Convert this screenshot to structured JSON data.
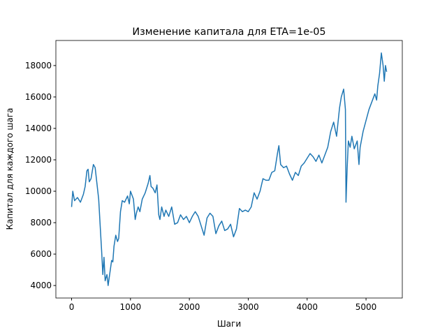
{
  "chart_data": {
    "type": "line",
    "title": "Изменение капитала для ETA=1e-05",
    "x_label": "Шаги",
    "y_label": "Капитал для каждого шага",
    "x": [
      0,
      20,
      50,
      100,
      150,
      200,
      230,
      260,
      280,
      300,
      330,
      370,
      400,
      430,
      460,
      490,
      510,
      530,
      550,
      570,
      600,
      620,
      650,
      680,
      700,
      720,
      750,
      780,
      800,
      830,
      860,
      900,
      950,
      980,
      1000,
      1050,
      1080,
      1100,
      1130,
      1160,
      1200,
      1250,
      1300,
      1330,
      1350,
      1380,
      1420,
      1450,
      1480,
      1500,
      1530,
      1570,
      1600,
      1650,
      1700,
      1750,
      1800,
      1850,
      1900,
      1950,
      2000,
      2050,
      2100,
      2150,
      2200,
      2250,
      2300,
      2350,
      2400,
      2450,
      2500,
      2550,
      2600,
      2650,
      2700,
      2750,
      2800,
      2850,
      2900,
      2950,
      3000,
      3050,
      3100,
      3150,
      3200,
      3250,
      3300,
      3350,
      3400,
      3450,
      3500,
      3520,
      3550,
      3600,
      3650,
      3700,
      3750,
      3800,
      3850,
      3900,
      3950,
      4000,
      4050,
      4100,
      4150,
      4200,
      4250,
      4300,
      4350,
      4400,
      4450,
      4500,
      4550,
      4580,
      4620,
      4650,
      4660,
      4680,
      4700,
      4730,
      4760,
      4800,
      4850,
      4880,
      4900,
      4950,
      5000,
      5050,
      5100,
      5150,
      5180,
      5200,
      5230,
      5260,
      5290,
      5310,
      5330,
      5350
    ],
    "series": [
      {
        "color": "#1f77b4",
        "values": [
          9000,
          10000,
          9400,
          9600,
          9300,
          9800,
          10300,
          11300,
          11400,
          10600,
          10800,
          11700,
          11500,
          10500,
          9500,
          7500,
          6200,
          4700,
          5800,
          4300,
          4700,
          4000,
          4800,
          5600,
          5500,
          6500,
          7200,
          6800,
          7000,
          8700,
          9400,
          9300,
          9700,
          9200,
          10000,
          9500,
          8200,
          8600,
          9000,
          8700,
          9500,
          9900,
          10500,
          11000,
          10300,
          10200,
          9900,
          10400,
          8500,
          8200,
          9000,
          8400,
          8800,
          8400,
          9000,
          7900,
          8000,
          8500,
          8200,
          8400,
          8000,
          8400,
          8700,
          8400,
          7800,
          7200,
          8300,
          8600,
          8400,
          7300,
          7800,
          8100,
          7500,
          7600,
          7900,
          7100,
          7600,
          8900,
          8700,
          8800,
          8700,
          9000,
          9900,
          9500,
          10000,
          10800,
          10700,
          10700,
          11200,
          11300,
          12500,
          12900,
          11700,
          11500,
          11600,
          11100,
          10700,
          11200,
          11000,
          11600,
          11800,
          12100,
          12400,
          12200,
          11900,
          12300,
          11800,
          12300,
          12800,
          13800,
          14400,
          13500,
          15300,
          16000,
          16500,
          15200,
          9300,
          11500,
          13200,
          12800,
          13500,
          12700,
          13200,
          11700,
          12800,
          13800,
          14500,
          15200,
          15700,
          16200,
          15800,
          16700,
          17500,
          18800,
          18000,
          17000,
          18000,
          17600
        ]
      }
    ],
    "xlim": [
      -267,
      5616
    ],
    "ylim": [
      3205,
      19595
    ],
    "xticks": [
      0,
      1000,
      2000,
      3000,
      4000,
      5000
    ],
    "yticks": [
      4000,
      6000,
      8000,
      10000,
      12000,
      14000,
      16000,
      18000
    ]
  }
}
